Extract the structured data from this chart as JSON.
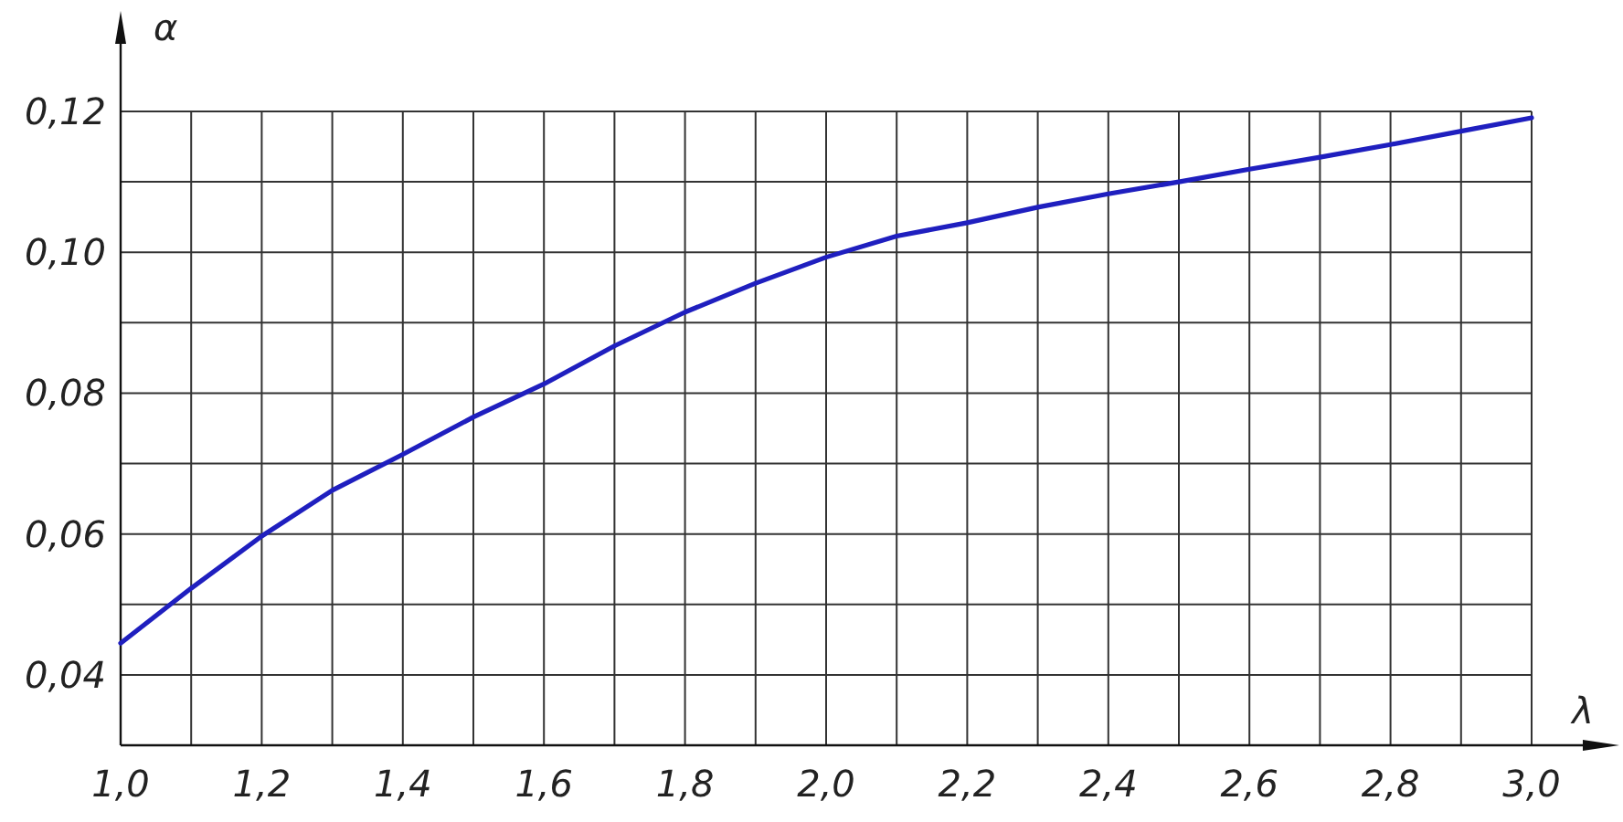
{
  "chart_data": {
    "type": "line",
    "xlabel": "λ",
    "ylabel": "α",
    "x": [
      1.0,
      1.1,
      1.2,
      1.3,
      1.4,
      1.5,
      1.6,
      1.7,
      1.8,
      1.9,
      2.0,
      2.1,
      2.2,
      2.3,
      2.4,
      2.5,
      2.6,
      2.7,
      2.8,
      2.9,
      3.0
    ],
    "series": [
      {
        "color": "#1f1fbf",
        "values": [
          0.0445,
          0.0523,
          0.0597,
          0.0662,
          0.0713,
          0.0766,
          0.0813,
          0.0867,
          0.0915,
          0.0956,
          0.0993,
          0.1023,
          0.1042,
          0.1064,
          0.1083,
          0.11,
          0.1118,
          0.1135,
          0.1153,
          0.1172,
          0.1191
        ]
      }
    ],
    "xlim": [
      1.0,
      3.0
    ],
    "xticks": [
      {
        "value": 1.0,
        "label": "1,0"
      },
      {
        "value": 1.1,
        "label": null
      },
      {
        "value": 1.2,
        "label": "1,2"
      },
      {
        "value": 1.3,
        "label": null
      },
      {
        "value": 1.4,
        "label": "1,4"
      },
      {
        "value": 1.5,
        "label": null
      },
      {
        "value": 1.6,
        "label": "1,6"
      },
      {
        "value": 1.7,
        "label": null
      },
      {
        "value": 1.8,
        "label": "1,8"
      },
      {
        "value": 1.9,
        "label": null
      },
      {
        "value": 2.0,
        "label": "2,0"
      },
      {
        "value": 2.1,
        "label": null
      },
      {
        "value": 2.2,
        "label": "2,2"
      },
      {
        "value": 2.3,
        "label": null
      },
      {
        "value": 2.4,
        "label": "2,4"
      },
      {
        "value": 2.5,
        "label": null
      },
      {
        "value": 2.6,
        "label": "2,6"
      },
      {
        "value": 2.7,
        "label": null
      },
      {
        "value": 2.8,
        "label": "2,8"
      },
      {
        "value": 2.9,
        "label": null
      },
      {
        "value": 3.0,
        "label": "3,0"
      }
    ],
    "ylim": [
      0.03,
      0.12
    ],
    "yticks": [
      {
        "value": 0.03,
        "label": null
      },
      {
        "value": 0.04,
        "label": "0,04"
      },
      {
        "value": 0.05,
        "label": null
      },
      {
        "value": 0.06,
        "label": "0,06"
      },
      {
        "value": 0.07,
        "label": null
      },
      {
        "value": 0.08,
        "label": "0,08"
      },
      {
        "value": 0.09,
        "label": null
      },
      {
        "value": 0.1,
        "label": "0,10"
      },
      {
        "value": 0.11,
        "label": null
      },
      {
        "value": 0.12,
        "label": "0,12"
      }
    ],
    "grid": true,
    "line_style": "solid",
    "marker": "none"
  }
}
